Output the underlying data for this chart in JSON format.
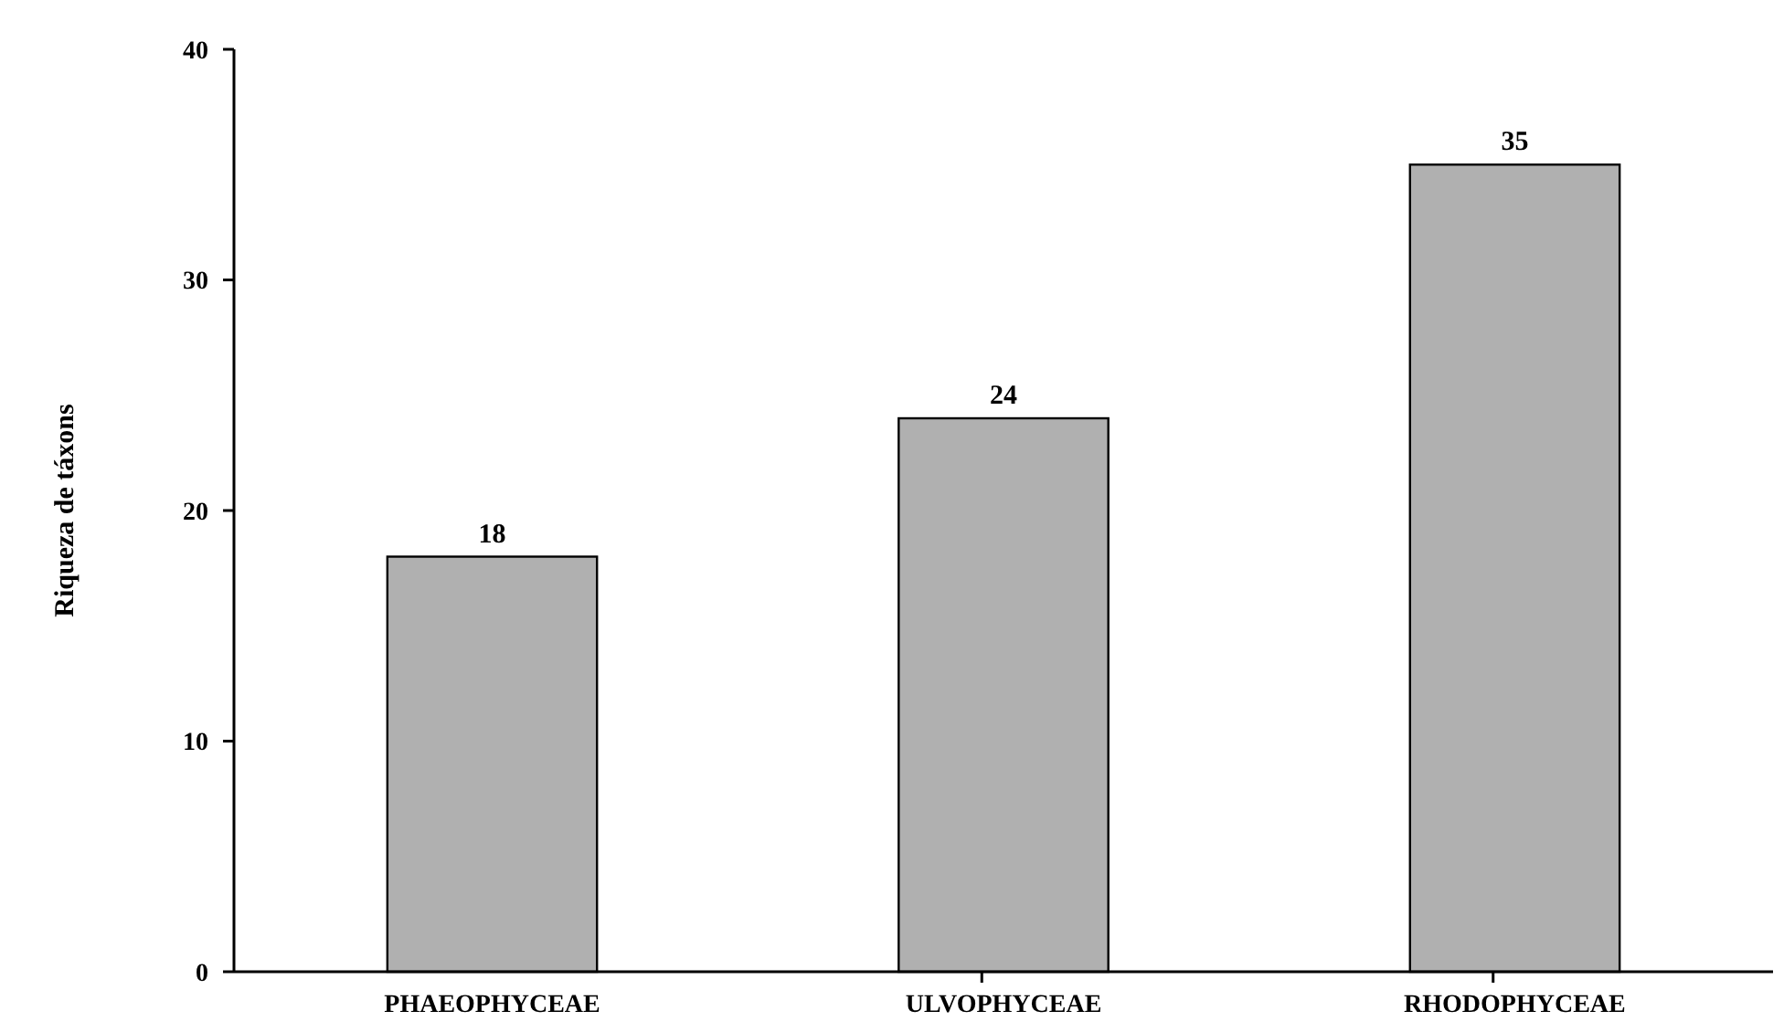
{
  "chart_data": {
    "type": "bar",
    "ylabel": "Riqueza de táxons",
    "categories": [
      "PHAEOPHYCEAE",
      "ULVOPHYCEAE",
      "RHODOPHYCEAE"
    ],
    "values": [
      18,
      24,
      35
    ],
    "color": "#b0b0b0",
    "ylim": [
      0,
      40
    ],
    "yticks": [
      0,
      10,
      20,
      30,
      40
    ],
    "data_labels": true
  }
}
